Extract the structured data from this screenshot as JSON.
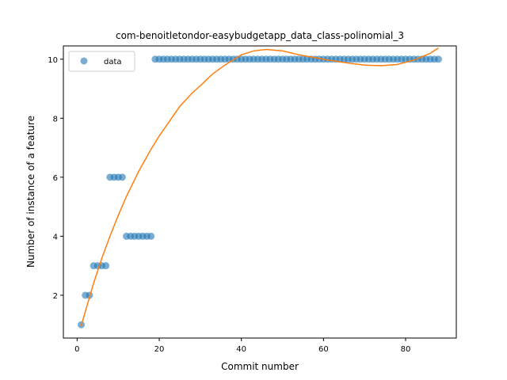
{
  "chart_data": {
    "type": "scatter",
    "title": "com-benoitletondor-easybudgetapp_data_class-polinomial_3",
    "xlabel": "Commit number",
    "ylabel": "Number of instance of a feature",
    "xlim": [
      -3.35,
      92.35
    ],
    "ylim": [
      0.55,
      10.45
    ],
    "xticks": [
      0,
      20,
      40,
      60,
      80
    ],
    "yticks": [
      2,
      4,
      6,
      8,
      10
    ],
    "legend": {
      "position": "top-left",
      "entries": [
        "data"
      ]
    },
    "grid": false,
    "series": [
      {
        "name": "data",
        "kind": "points",
        "color": "#1f77b4",
        "x": [
          1,
          2,
          3,
          4,
          5,
          6,
          7,
          8,
          9,
          10,
          11,
          12,
          13,
          14,
          15,
          16,
          17,
          18,
          19,
          20,
          21,
          22,
          23,
          24,
          25,
          26,
          27,
          28,
          29,
          30,
          31,
          32,
          33,
          34,
          35,
          36,
          37,
          38,
          39,
          40,
          41,
          42,
          43,
          44,
          45,
          46,
          47,
          48,
          49,
          50,
          51,
          52,
          53,
          54,
          55,
          56,
          57,
          58,
          59,
          60,
          61,
          62,
          63,
          64,
          65,
          66,
          67,
          68,
          69,
          70,
          71,
          72,
          73,
          74,
          75,
          76,
          77,
          78,
          79,
          80,
          81,
          82,
          83,
          84,
          85,
          86,
          87,
          88
        ],
        "y": [
          1,
          2,
          2,
          3,
          3,
          3,
          3,
          6,
          6,
          6,
          6,
          4,
          4,
          4,
          4,
          4,
          4,
          4,
          10,
          10,
          10,
          10,
          10,
          10,
          10,
          10,
          10,
          10,
          10,
          10,
          10,
          10,
          10,
          10,
          10,
          10,
          10,
          10,
          10,
          10,
          10,
          10,
          10,
          10,
          10,
          10,
          10,
          10,
          10,
          10,
          10,
          10,
          10,
          10,
          10,
          10,
          10,
          10,
          10,
          10,
          10,
          10,
          10,
          10,
          10,
          10,
          10,
          10,
          10,
          10,
          10,
          10,
          10,
          10,
          10,
          10,
          10,
          10,
          10,
          10,
          10,
          10,
          10,
          10,
          10,
          10,
          10,
          10
        ]
      },
      {
        "name": "",
        "kind": "line",
        "color": "#ff7f0e",
        "x": [
          1,
          2,
          4,
          6,
          8,
          10,
          12,
          15,
          18,
          20,
          22,
          25,
          28,
          30,
          33,
          36,
          40,
          43,
          46,
          50,
          54,
          58,
          62,
          66,
          70,
          74,
          78,
          82,
          86,
          88
        ],
        "y": [
          0.95,
          1.45,
          2.4,
          3.25,
          4.0,
          4.7,
          5.35,
          6.2,
          6.95,
          7.4,
          7.8,
          8.4,
          8.85,
          9.1,
          9.5,
          9.8,
          10.15,
          10.28,
          10.33,
          10.28,
          10.15,
          10.05,
          9.95,
          9.87,
          9.8,
          9.78,
          9.82,
          9.97,
          10.2,
          10.38
        ]
      }
    ]
  }
}
